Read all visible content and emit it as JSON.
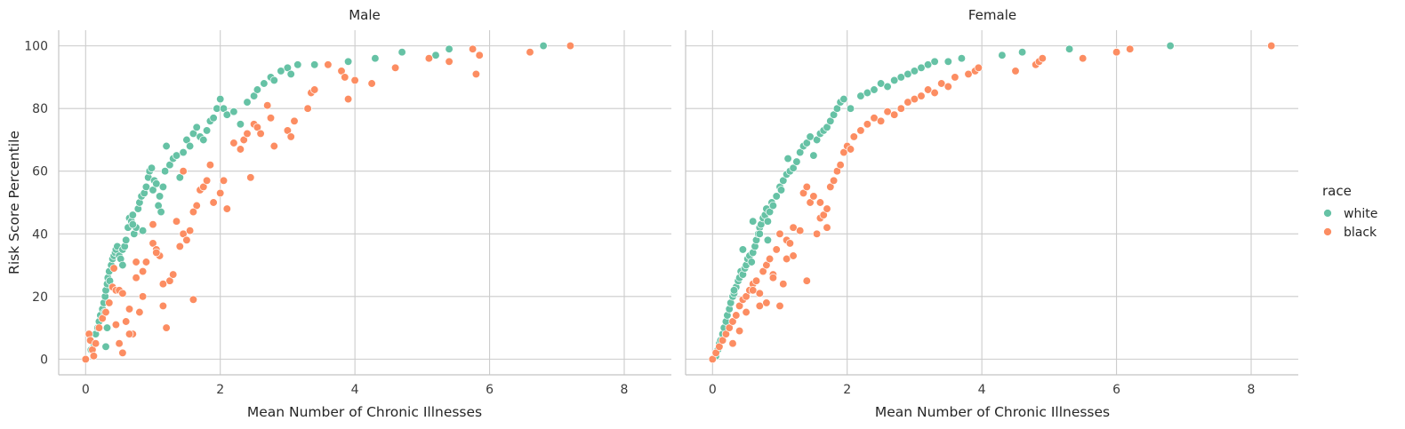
{
  "chart_data": [
    {
      "type": "scatter",
      "title": "Male",
      "xlabel": "Mean Number of Chronic Illnesses",
      "ylabel": "Risk Score Percentile",
      "xlim": [
        -0.4,
        8.7
      ],
      "ylim": [
        -5,
        105
      ],
      "xticks": [
        0,
        2,
        4,
        6,
        8
      ],
      "yticks": [
        0,
        20,
        40,
        60,
        80,
        100
      ],
      "grid": true,
      "series": [
        {
          "name": "white",
          "color": "#66c2a5",
          "x": [
            0.08,
            0.12,
            0.15,
            0.18,
            0.2,
            0.22,
            0.25,
            0.27,
            0.29,
            0.3,
            0.3,
            0.32,
            0.33,
            0.35,
            0.36,
            0.38,
            0.4,
            0.42,
            0.44,
            0.45,
            0.47,
            0.5,
            0.52,
            0.55,
            0.58,
            0.6,
            0.63,
            0.65,
            0.68,
            0.7,
            0.72,
            0.75,
            0.78,
            0.8,
            0.83,
            0.87,
            0.9,
            0.93,
            0.95,
            0.98,
            1.0,
            1.02,
            1.05,
            1.08,
            1.1,
            1.12,
            1.15,
            1.18,
            1.2,
            1.25,
            1.3,
            1.35,
            1.4,
            1.45,
            1.5,
            1.55,
            1.6,
            1.65,
            1.7,
            1.75,
            1.8,
            1.85,
            1.9,
            1.95,
            2.0,
            2.05,
            2.1,
            2.2,
            2.3,
            2.4,
            2.5,
            2.55,
            2.65,
            2.75,
            2.8,
            2.9,
            3.0,
            3.05,
            3.15,
            3.4,
            3.9,
            4.3,
            4.7,
            5.2,
            5.4,
            6.8,
            0.28,
            0.32,
            0.55,
            0.7,
            0.85
          ],
          "y": [
            3,
            5,
            8,
            10,
            12,
            14,
            16,
            18,
            20,
            22,
            4,
            24,
            26,
            28,
            25,
            30,
            32,
            33,
            34,
            35,
            36,
            33,
            32,
            35,
            36,
            38,
            42,
            45,
            44,
            46,
            40,
            42,
            48,
            50,
            52,
            53,
            55,
            58,
            60,
            61,
            54,
            57,
            56,
            49,
            52,
            47,
            55,
            60,
            68,
            62,
            64,
            65,
            58,
            66,
            70,
            68,
            72,
            74,
            71,
            70,
            73,
            76,
            77,
            80,
            83,
            80,
            78,
            79,
            75,
            82,
            84,
            86,
            88,
            90,
            89,
            92,
            93,
            91,
            94,
            94,
            95,
            96,
            98,
            97,
            99,
            100,
            15,
            10,
            30,
            43,
            41
          ]
        },
        {
          "name": "black",
          "color": "#fc8d62",
          "x": [
            0.0,
            0.05,
            0.07,
            0.1,
            0.12,
            0.15,
            0.2,
            0.25,
            0.3,
            0.35,
            0.4,
            0.42,
            0.45,
            0.5,
            0.55,
            0.6,
            0.65,
            0.7,
            0.75,
            0.8,
            0.85,
            0.9,
            1.0,
            1.05,
            1.1,
            1.15,
            1.2,
            1.25,
            1.3,
            1.35,
            1.4,
            1.45,
            1.5,
            1.55,
            1.6,
            1.65,
            1.7,
            1.75,
            1.8,
            1.85,
            1.9,
            2.0,
            2.05,
            2.1,
            2.2,
            2.3,
            2.35,
            2.4,
            2.45,
            2.5,
            2.55,
            2.6,
            2.7,
            2.75,
            2.8,
            3.0,
            3.05,
            3.1,
            3.3,
            3.35,
            3.4,
            3.6,
            3.8,
            3.85,
            3.9,
            4.0,
            4.25,
            4.6,
            5.1,
            5.4,
            5.75,
            5.8,
            5.85,
            6.6,
            7.2,
            0.45,
            0.5,
            0.55,
            0.65,
            0.75,
            0.85,
            1.0,
            1.05,
            1.15,
            1.6,
            1.45
          ],
          "y": [
            0,
            8,
            6,
            3,
            1,
            5,
            10,
            13,
            15,
            18,
            23,
            29,
            11,
            5,
            2,
            12,
            16,
            8,
            26,
            15,
            20,
            31,
            37,
            35,
            33,
            17,
            10,
            25,
            27,
            44,
            36,
            40,
            38,
            41,
            19,
            49,
            54,
            55,
            57,
            62,
            50,
            53,
            57,
            48,
            69,
            67,
            70,
            72,
            58,
            75,
            74,
            72,
            81,
            77,
            68,
            73,
            71,
            76,
            80,
            85,
            86,
            94,
            92,
            90,
            83,
            89,
            88,
            93,
            96,
            95,
            99,
            91,
            97,
            98,
            100,
            22,
            22,
            21,
            8,
            31,
            28,
            43,
            34,
            24,
            47,
            60
          ]
        }
      ]
    },
    {
      "type": "scatter",
      "title": "Female",
      "xlabel": "Mean Number of Chronic Illnesses",
      "ylabel": "",
      "xlim": [
        -0.4,
        8.7
      ],
      "ylim": [
        -5,
        105
      ],
      "xticks": [
        0,
        2,
        4,
        6,
        8
      ],
      "yticks": [
        0,
        20,
        40,
        60,
        80,
        100
      ],
      "grid": true,
      "series": [
        {
          "name": "white",
          "color": "#66c2a5",
          "x": [
            0.05,
            0.08,
            0.1,
            0.12,
            0.15,
            0.17,
            0.2,
            0.22,
            0.25,
            0.27,
            0.3,
            0.32,
            0.35,
            0.38,
            0.4,
            0.42,
            0.45,
            0.48,
            0.5,
            0.52,
            0.55,
            0.58,
            0.6,
            0.63,
            0.65,
            0.68,
            0.7,
            0.72,
            0.75,
            0.78,
            0.8,
            0.82,
            0.85,
            0.88,
            0.9,
            0.95,
            1.0,
            1.02,
            1.05,
            1.1,
            1.12,
            1.15,
            1.2,
            1.25,
            1.3,
            1.35,
            1.4,
            1.45,
            1.5,
            1.55,
            1.6,
            1.65,
            1.7,
            1.75,
            1.8,
            1.85,
            1.9,
            1.95,
            2.05,
            2.2,
            2.3,
            2.4,
            2.5,
            2.6,
            2.7,
            2.8,
            2.9,
            3.0,
            3.1,
            3.2,
            3.3,
            3.5,
            3.7,
            4.3,
            4.6,
            5.3,
            6.8,
            0.32,
            0.45,
            0.6,
            0.7,
            0.82
          ],
          "y": [
            1,
            3,
            5,
            6,
            8,
            10,
            12,
            14,
            16,
            18,
            20,
            21,
            23,
            25,
            26,
            28,
            27,
            29,
            30,
            32,
            33,
            31,
            34,
            36,
            38,
            40,
            42,
            43,
            45,
            46,
            48,
            44,
            47,
            50,
            49,
            52,
            55,
            54,
            57,
            59,
            64,
            60,
            61,
            63,
            66,
            68,
            69,
            71,
            65,
            70,
            72,
            73,
            74,
            76,
            78,
            80,
            82,
            83,
            80,
            84,
            85,
            86,
            88,
            87,
            89,
            90,
            91,
            92,
            93,
            94,
            95,
            95,
            96,
            97,
            98,
            99,
            100,
            22,
            35,
            44,
            40,
            38
          ]
        },
        {
          "name": "black",
          "color": "#fc8d62",
          "x": [
            0.0,
            0.05,
            0.1,
            0.15,
            0.2,
            0.25,
            0.3,
            0.35,
            0.4,
            0.45,
            0.5,
            0.55,
            0.6,
            0.65,
            0.7,
            0.75,
            0.8,
            0.85,
            0.9,
            0.95,
            1.0,
            1.05,
            1.1,
            1.15,
            1.2,
            1.3,
            1.35,
            1.4,
            1.45,
            1.5,
            1.55,
            1.6,
            1.65,
            1.7,
            1.75,
            1.8,
            1.85,
            1.9,
            1.95,
            2.0,
            2.05,
            2.1,
            2.2,
            2.3,
            2.4,
            2.5,
            2.6,
            2.7,
            2.8,
            2.9,
            3.0,
            3.1,
            3.2,
            3.3,
            3.4,
            3.5,
            3.6,
            3.8,
            3.9,
            3.95,
            4.5,
            4.8,
            4.85,
            4.9,
            5.5,
            6.0,
            6.2,
            8.3,
            0.3,
            0.4,
            0.5,
            0.6,
            0.7,
            0.8,
            0.9,
            1.0,
            1.1,
            1.2,
            1.4,
            1.6,
            1.7
          ],
          "y": [
            0,
            2,
            4,
            6,
            8,
            10,
            12,
            14,
            17,
            19,
            20,
            22,
            24,
            25,
            21,
            28,
            30,
            32,
            27,
            35,
            40,
            24,
            38,
            37,
            42,
            41,
            53,
            55,
            50,
            52,
            40,
            45,
            46,
            48,
            55,
            57,
            60,
            62,
            66,
            68,
            67,
            71,
            73,
            75,
            77,
            76,
            79,
            78,
            80,
            82,
            83,
            84,
            86,
            85,
            88,
            87,
            90,
            91,
            92,
            93,
            92,
            94,
            95,
            96,
            96,
            98,
            99,
            100,
            5,
            9,
            15,
            22,
            17,
            18,
            26,
            17,
            32,
            33,
            25,
            50,
            42
          ]
        }
      ]
    }
  ],
  "legend": {
    "title": "race",
    "placement": "right",
    "entries": [
      {
        "label": "white",
        "color": "#66c2a5"
      },
      {
        "label": "black",
        "color": "#fc8d62"
      }
    ]
  }
}
